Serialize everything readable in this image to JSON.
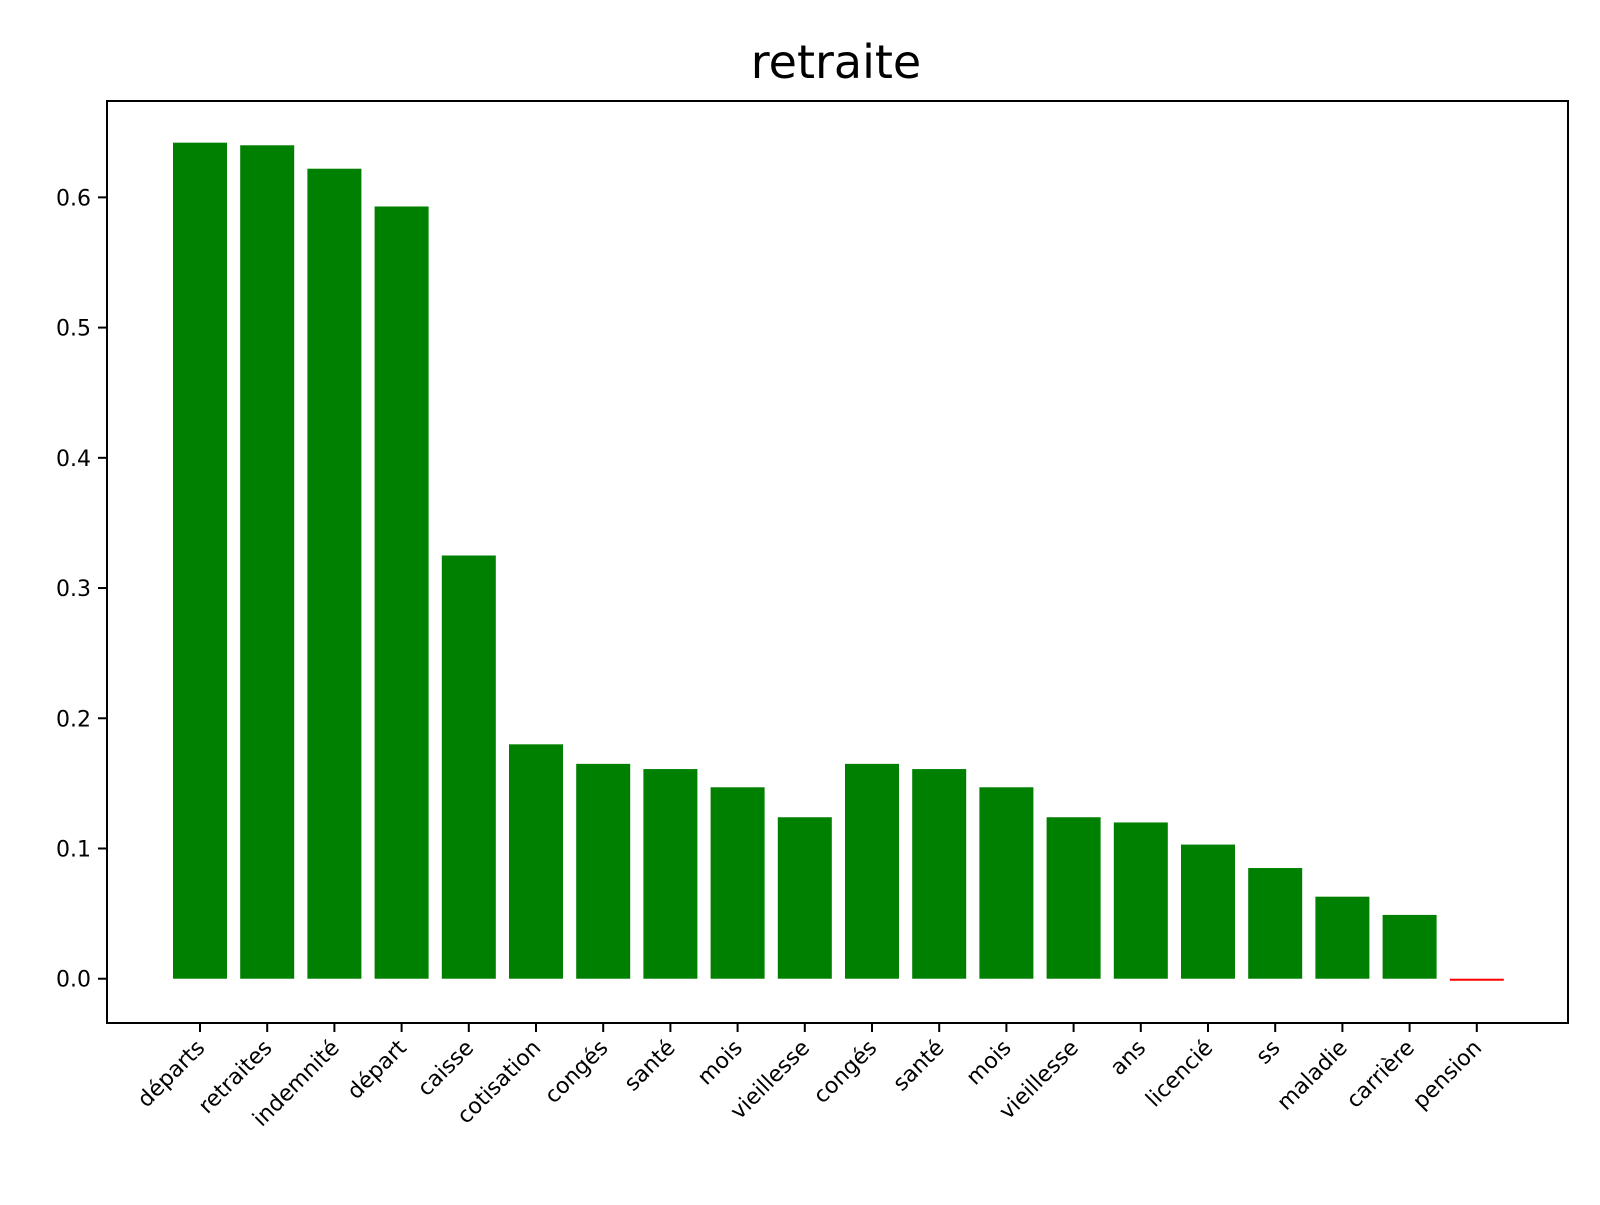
{
  "chart_data": {
    "type": "bar",
    "title": "retraite",
    "xlabel": "",
    "ylabel": "",
    "categories": [
      "départs",
      "retraites",
      "indemnité",
      "départ",
      "caisse",
      "cotisation",
      "congés",
      "santé",
      "mois",
      "vieillesse",
      "congés",
      "santé",
      "mois",
      "vieillesse",
      "ans",
      "licencié",
      "ss",
      "maladie",
      "carrière",
      "pension"
    ],
    "values": [
      0.642,
      0.64,
      0.622,
      0.593,
      0.325,
      0.18,
      0.165,
      0.161,
      0.147,
      0.124,
      0.165,
      0.161,
      0.147,
      0.124,
      0.12,
      0.103,
      0.085,
      0.063,
      0.049,
      -0.001
    ],
    "ylim": [
      -0.034,
      0.674
    ],
    "yticks": [
      0.0,
      0.1,
      0.2,
      0.3,
      0.4,
      0.5,
      0.6
    ],
    "ytick_labels": [
      "0.0",
      "0.1",
      "0.2",
      "0.3",
      "0.4",
      "0.5",
      "0.6"
    ],
    "grid": false,
    "colors": {
      "positive": "#008000",
      "negative": "#ff0000",
      "axes": "#000000"
    }
  }
}
